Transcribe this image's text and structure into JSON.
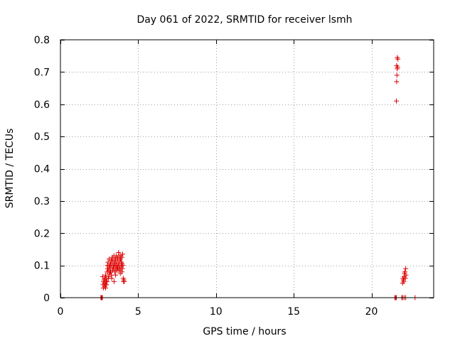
{
  "chart_data": {
    "type": "scatter",
    "title": "Day 061 of 2022, SRMTID for receiver lsmh",
    "xlabel": "GPS time / hours",
    "ylabel": "SRMTID / TECUs",
    "xlim": [
      0,
      24
    ],
    "ylim": [
      0,
      0.8
    ],
    "x_ticks": [
      0,
      5,
      10,
      15,
      20
    ],
    "y_ticks": [
      0,
      0.1,
      0.2,
      0.3,
      0.4,
      0.5,
      0.6,
      0.7,
      0.8
    ],
    "y_tick_labels": [
      "0",
      "0.1",
      "0.2",
      "0.3",
      "0.4",
      "0.5",
      "0.6",
      "0.7",
      "0.8"
    ],
    "grid": true,
    "marker": "plus",
    "series": [
      {
        "name": "SRMTID",
        "color": "#dd0000",
        "x": [
          2.6,
          2.62,
          2.64,
          2.66,
          2.68,
          2.7,
          2.72,
          2.74,
          2.76,
          2.78,
          2.8,
          2.82,
          2.84,
          2.86,
          2.88,
          2.9,
          2.92,
          2.94,
          2.96,
          2.98,
          3.0,
          3.02,
          3.04,
          3.06,
          3.08,
          3.1,
          3.12,
          3.14,
          3.16,
          3.18,
          3.2,
          3.22,
          3.24,
          3.26,
          3.28,
          3.3,
          3.32,
          3.34,
          3.36,
          3.38,
          3.4,
          3.42,
          3.44,
          3.46,
          3.48,
          3.5,
          3.52,
          3.54,
          3.56,
          3.58,
          3.6,
          3.62,
          3.64,
          3.66,
          3.68,
          3.7,
          3.72,
          3.74,
          3.76,
          3.78,
          3.8,
          3.82,
          3.84,
          3.86,
          3.88,
          3.9,
          3.92,
          3.94,
          3.96,
          3.98,
          4.0,
          4.02,
          4.04,
          4.06,
          4.08,
          4.1,
          2.9,
          3.0,
          3.1,
          3.2,
          3.3,
          3.45,
          3.55,
          3.65,
          3.75,
          3.85,
          3.95,
          21.6,
          21.62,
          21.64,
          21.66,
          21.68,
          21.7,
          21.66,
          21.62,
          21.5,
          21.55,
          21.6,
          21.95,
          22.0,
          22.05,
          22.1,
          22.15,
          22.2,
          22.22,
          22.18,
          22.12,
          22.08,
          22.02,
          22.0,
          22.1,
          22.2,
          22.8
        ],
        "y": [
          0.0,
          0.0,
          0.0,
          0.0,
          0.0,
          0.0,
          0.065,
          0.04,
          0.03,
          0.05,
          0.055,
          0.045,
          0.035,
          0.06,
          0.04,
          0.07,
          0.05,
          0.06,
          0.04,
          0.05,
          0.08,
          0.1,
          0.09,
          0.11,
          0.06,
          0.085,
          0.095,
          0.12,
          0.075,
          0.1,
          0.09,
          0.105,
          0.08,
          0.115,
          0.07,
          0.1,
          0.12,
          0.125,
          0.085,
          0.11,
          0.095,
          0.09,
          0.13,
          0.1,
          0.115,
          0.08,
          0.105,
          0.12,
          0.09,
          0.13,
          0.1,
          0.11,
          0.085,
          0.125,
          0.095,
          0.12,
          0.105,
          0.14,
          0.09,
          0.13,
          0.1,
          0.115,
          0.085,
          0.12,
          0.13,
          0.095,
          0.11,
          0.125,
          0.105,
          0.09,
          0.135,
          0.1,
          0.06,
          0.05,
          0.055,
          0.05,
          0.03,
          0.05,
          0.065,
          0.08,
          0.06,
          0.05,
          0.07,
          0.09,
          0.085,
          0.075,
          0.08,
          0.61,
          0.67,
          0.69,
          0.71,
          0.715,
          0.74,
          0.745,
          0.72,
          0.0,
          0.0,
          0.0,
          0.0,
          0.045,
          0.055,
          0.065,
          0.08,
          0.09,
          0.07,
          0.06,
          0.075,
          0.05,
          0.06,
          0.0,
          0.0,
          0.0,
          0.0
        ]
      }
    ]
  }
}
